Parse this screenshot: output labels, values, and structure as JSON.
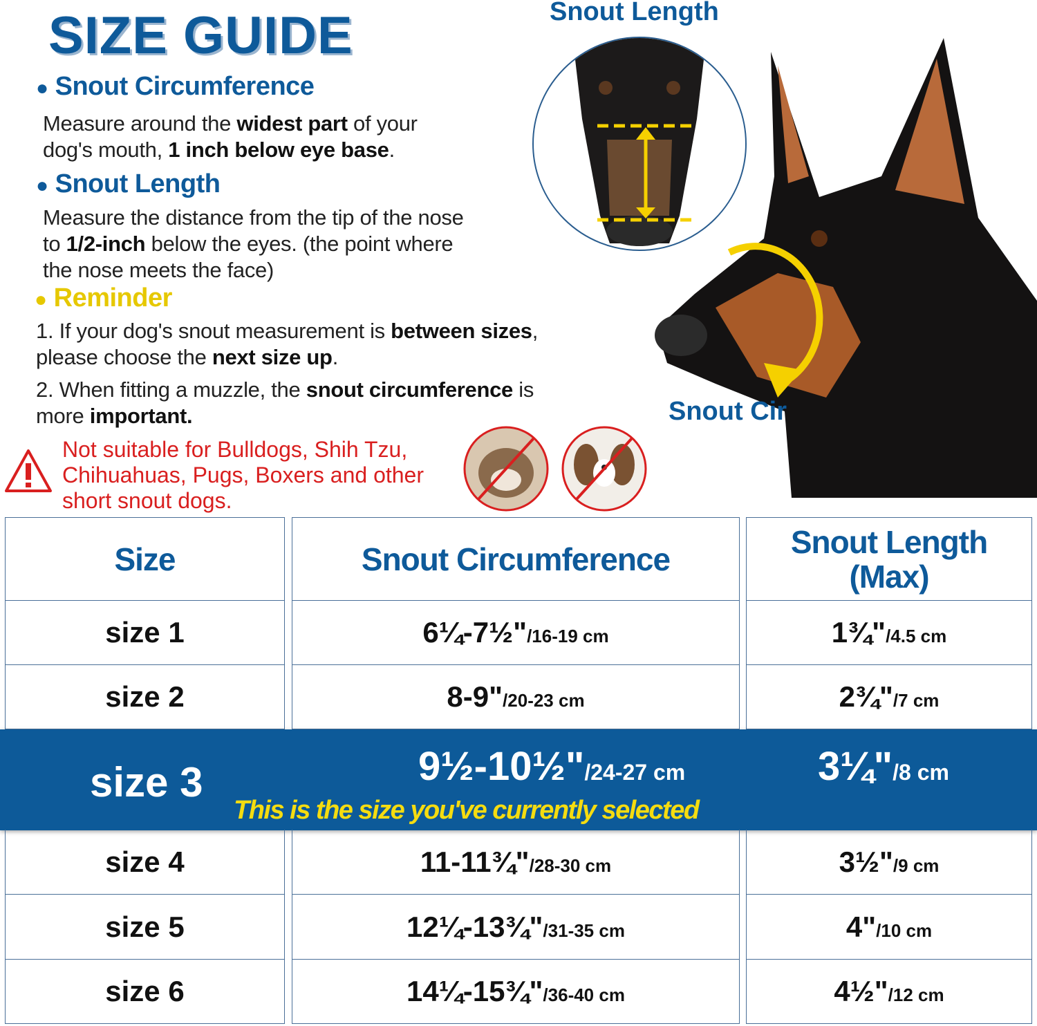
{
  "title": "SIZE GUIDE",
  "sections": {
    "circ": {
      "heading": "Snout Circumference",
      "p1a": "Measure around the ",
      "p1b": "widest part",
      "p1c": " of your",
      "p2a": "dog's mouth, ",
      "p2b": "1 inch below eye base",
      "p2c": "."
    },
    "len": {
      "heading": "Snout Length",
      "l1": "Measure the distance from the tip of the nose",
      "l2a": "to ",
      "l2b": "1/2-inch",
      "l2c": " below the eyes. (the point where",
      "l3": "the nose meets the face)"
    },
    "reminder": {
      "heading": "Reminder",
      "r1a": "1. If your dog's snout measurement is ",
      "r1b": "between sizes",
      "r1c": ",",
      "r2a": "please choose the ",
      "r2b": "next size up",
      "r2c": ".",
      "r3a": "2. When fitting a muzzle, the ",
      "r3b": "snout circumference",
      "r3c": " is",
      "r4a": "more ",
      "r4b": "important."
    },
    "warning": {
      "l1": "Not suitable for Bulldogs, Shih Tzu,",
      "l2": "Chihuahuas, Pugs, Boxers and other",
      "l3": "short snout dogs."
    }
  },
  "diagram": {
    "snout_length_label": "Snout Length",
    "snout_cir_label": "Snout Cir"
  },
  "colors": {
    "brand": "#0e5a9a",
    "highlight_text": "#f5dc10",
    "warning": "#d91f1f",
    "measure": "#f5d000"
  },
  "table": {
    "headers": [
      "Size",
      "Snout Circumference",
      "Snout Length",
      "(Max)"
    ],
    "rows": [
      {
        "size": "size 1",
        "circ": "6¼-7½\"",
        "circ_cm": "/16-19 cm",
        "len": "1¾\"",
        "len_cm": "/4.5 cm"
      },
      {
        "size": "size 2",
        "circ": "8-9\"",
        "circ_cm": "/20-23 cm",
        "len": "2¾\"",
        "len_cm": "/7 cm"
      },
      {
        "size": "size 3",
        "circ": "9½-10½\"",
        "circ_cm": "/24-27 cm",
        "len": "3¼\"",
        "len_cm": "/8 cm",
        "selected": true,
        "note": "This is the size you've currently selected"
      },
      {
        "size": "size 4",
        "circ": "11-11¾\"",
        "circ_cm": "/28-30 cm",
        "len": "3½\"",
        "len_cm": "/9 cm"
      },
      {
        "size": "size 5",
        "circ": "12¼-13¾\"",
        "circ_cm": "/31-35 cm",
        "len": "4\"",
        "len_cm": "/10 cm"
      },
      {
        "size": "size 6",
        "circ": "14¼-15¾\"",
        "circ_cm": "/36-40 cm",
        "len": "4½\"",
        "len_cm": "/12 cm"
      }
    ]
  }
}
